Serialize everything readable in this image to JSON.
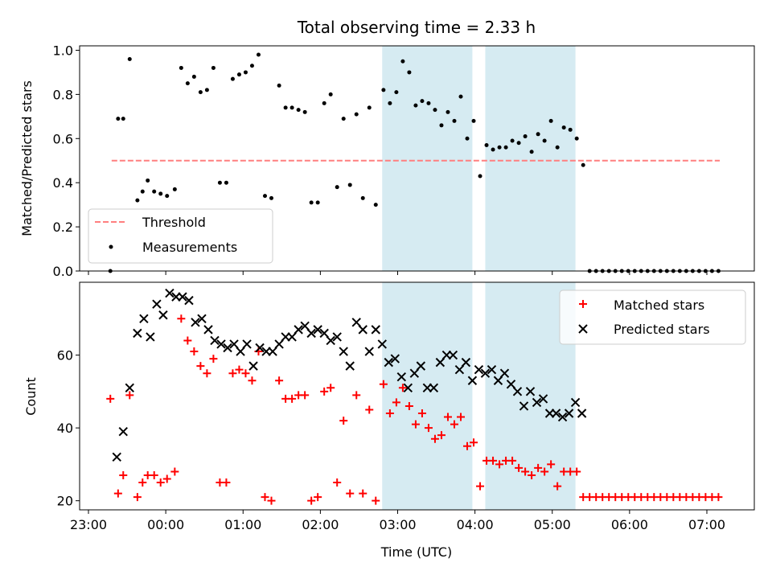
{
  "chart_data": {
    "title": "Total observing time = 2.33 h",
    "colors": {
      "threshold": "#ff7f7f",
      "measurements": "#000000",
      "matched": "#ff0000",
      "predicted": "#000000",
      "shade": "#add8e6"
    },
    "xlabel": "Time (UTC)",
    "x_ticks": [
      "23:00",
      "00:00",
      "01:00",
      "02:00",
      "03:00",
      "04:00",
      "05:00",
      "06:00",
      "07:00"
    ],
    "shaded_intervals": [
      [
        "02:48",
        "03:58"
      ],
      [
        "04:08",
        "05:18"
      ]
    ],
    "top": {
      "type": "scatter",
      "ylabel": "Matched/Predicted stars",
      "ylim": [
        0,
        1.02
      ],
      "y_ticks": [
        "0.0",
        "0.2",
        "0.4",
        "0.6",
        "0.8",
        "1.0"
      ],
      "legend": {
        "placement": "lower-left",
        "entries": [
          "Threshold",
          "Measurements"
        ]
      },
      "threshold": {
        "name": "Threshold",
        "value": 0.5,
        "x_range": [
          "23:18",
          "07:10"
        ]
      },
      "measurements": {
        "name": "Measurements",
        "points": [
          [
            "23:17",
            0.0
          ],
          [
            "23:23",
            0.69
          ],
          [
            "23:27",
            0.69
          ],
          [
            "23:32",
            0.96
          ],
          [
            "23:38",
            0.32
          ],
          [
            "23:42",
            0.36
          ],
          [
            "23:46",
            0.41
          ],
          [
            "23:51",
            0.36
          ],
          [
            "23:56",
            0.35
          ],
          [
            "00:01",
            0.34
          ],
          [
            "00:07",
            0.37
          ],
          [
            "00:12",
            0.92
          ],
          [
            "00:17",
            0.85
          ],
          [
            "00:22",
            0.88
          ],
          [
            "00:27",
            0.81
          ],
          [
            "00:32",
            0.82
          ],
          [
            "00:37",
            0.92
          ],
          [
            "00:42",
            0.4
          ],
          [
            "00:47",
            0.4
          ],
          [
            "00:52",
            0.87
          ],
          [
            "00:57",
            0.89
          ],
          [
            "01:02",
            0.9
          ],
          [
            "01:07",
            0.93
          ],
          [
            "01:12",
            0.98
          ],
          [
            "01:17",
            0.34
          ],
          [
            "01:22",
            0.33
          ],
          [
            "01:28",
            0.84
          ],
          [
            "01:33",
            0.74
          ],
          [
            "01:38",
            0.74
          ],
          [
            "01:43",
            0.73
          ],
          [
            "01:48",
            0.72
          ],
          [
            "01:53",
            0.31
          ],
          [
            "01:58",
            0.31
          ],
          [
            "02:03",
            0.76
          ],
          [
            "02:08",
            0.8
          ],
          [
            "02:13",
            0.38
          ],
          [
            "02:18",
            0.69
          ],
          [
            "02:23",
            0.39
          ],
          [
            "02:28",
            0.71
          ],
          [
            "02:33",
            0.33
          ],
          [
            "02:38",
            0.74
          ],
          [
            "02:43",
            0.3
          ],
          [
            "02:49",
            0.82
          ],
          [
            "02:54",
            0.76
          ],
          [
            "02:59",
            0.81
          ],
          [
            "03:04",
            0.95
          ],
          [
            "03:09",
            0.9
          ],
          [
            "03:14",
            0.75
          ],
          [
            "03:19",
            0.77
          ],
          [
            "03:24",
            0.76
          ],
          [
            "03:29",
            0.73
          ],
          [
            "03:34",
            0.66
          ],
          [
            "03:39",
            0.72
          ],
          [
            "03:44",
            0.68
          ],
          [
            "03:49",
            0.79
          ],
          [
            "03:54",
            0.6
          ],
          [
            "03:59",
            0.68
          ],
          [
            "04:04",
            0.43
          ],
          [
            "04:09",
            0.57
          ],
          [
            "04:14",
            0.55
          ],
          [
            "04:19",
            0.56
          ],
          [
            "04:24",
            0.56
          ],
          [
            "04:29",
            0.59
          ],
          [
            "04:34",
            0.58
          ],
          [
            "04:39",
            0.61
          ],
          [
            "04:44",
            0.54
          ],
          [
            "04:49",
            0.62
          ],
          [
            "04:54",
            0.59
          ],
          [
            "04:59",
            0.68
          ],
          [
            "05:04",
            0.56
          ],
          [
            "05:09",
            0.65
          ],
          [
            "05:14",
            0.64
          ],
          [
            "05:19",
            0.6
          ],
          [
            "05:24",
            0.48
          ],
          [
            "05:29",
            0.0
          ],
          [
            "05:34",
            0.0
          ],
          [
            "05:39",
            0.0
          ],
          [
            "05:44",
            0.0
          ],
          [
            "05:49",
            0.0
          ],
          [
            "05:54",
            0.0
          ],
          [
            "05:59",
            0.0
          ],
          [
            "06:04",
            0.0
          ],
          [
            "06:09",
            0.0
          ],
          [
            "06:14",
            0.0
          ],
          [
            "06:19",
            0.0
          ],
          [
            "06:24",
            0.0
          ],
          [
            "06:29",
            0.0
          ],
          [
            "06:34",
            0.0
          ],
          [
            "06:39",
            0.0
          ],
          [
            "06:44",
            0.0
          ],
          [
            "06:49",
            0.0
          ],
          [
            "06:54",
            0.0
          ],
          [
            "06:59",
            0.0
          ],
          [
            "07:04",
            0.0
          ],
          [
            "07:09",
            0.0
          ]
        ]
      }
    },
    "bottom": {
      "type": "scatter",
      "ylabel": "Count",
      "ylim": [
        17.5,
        80
      ],
      "y_ticks": [
        "20",
        "40",
        "60"
      ],
      "legend": {
        "placement": "upper-right",
        "entries": [
          "Matched stars",
          "Predicted stars"
        ]
      },
      "matched": {
        "name": "Matched stars",
        "points": [
          [
            "23:17",
            48
          ],
          [
            "23:23",
            22
          ],
          [
            "23:27",
            27
          ],
          [
            "23:32",
            49
          ],
          [
            "23:38",
            21
          ],
          [
            "23:42",
            25
          ],
          [
            "23:46",
            27
          ],
          [
            "23:51",
            27
          ],
          [
            "23:56",
            25
          ],
          [
            "00:01",
            26
          ],
          [
            "00:07",
            28
          ],
          [
            "00:12",
            70
          ],
          [
            "00:17",
            64
          ],
          [
            "00:22",
            61
          ],
          [
            "00:27",
            57
          ],
          [
            "00:32",
            55
          ],
          [
            "00:37",
            59
          ],
          [
            "00:42",
            25
          ],
          [
            "00:47",
            25
          ],
          [
            "00:52",
            55
          ],
          [
            "00:57",
            56
          ],
          [
            "01:02",
            55
          ],
          [
            "01:07",
            53
          ],
          [
            "01:12",
            61
          ],
          [
            "01:17",
            21
          ],
          [
            "01:22",
            20
          ],
          [
            "01:28",
            53
          ],
          [
            "01:33",
            48
          ],
          [
            "01:38",
            48
          ],
          [
            "01:43",
            49
          ],
          [
            "01:48",
            49
          ],
          [
            "01:53",
            20
          ],
          [
            "01:58",
            21
          ],
          [
            "02:03",
            50
          ],
          [
            "02:08",
            51
          ],
          [
            "02:13",
            25
          ],
          [
            "02:18",
            42
          ],
          [
            "02:23",
            22
          ],
          [
            "02:28",
            49
          ],
          [
            "02:33",
            22
          ],
          [
            "02:38",
            45
          ],
          [
            "02:43",
            20
          ],
          [
            "02:49",
            52
          ],
          [
            "02:54",
            44
          ],
          [
            "02:59",
            47
          ],
          [
            "03:04",
            51
          ],
          [
            "03:09",
            46
          ],
          [
            "03:14",
            41
          ],
          [
            "03:19",
            44
          ],
          [
            "03:24",
            40
          ],
          [
            "03:29",
            37
          ],
          [
            "03:34",
            38
          ],
          [
            "03:39",
            43
          ],
          [
            "03:44",
            41
          ],
          [
            "03:49",
            43
          ],
          [
            "03:54",
            35
          ],
          [
            "03:59",
            36
          ],
          [
            "04:04",
            24
          ],
          [
            "04:09",
            31
          ],
          [
            "04:14",
            31
          ],
          [
            "04:19",
            30
          ],
          [
            "04:24",
            31
          ],
          [
            "04:29",
            31
          ],
          [
            "04:34",
            29
          ],
          [
            "04:39",
            28
          ],
          [
            "04:44",
            27
          ],
          [
            "04:49",
            29
          ],
          [
            "04:54",
            28
          ],
          [
            "04:59",
            30
          ],
          [
            "05:04",
            24
          ],
          [
            "05:09",
            28
          ],
          [
            "05:14",
            28
          ],
          [
            "05:19",
            28
          ],
          [
            "05:24",
            21
          ],
          [
            "05:29",
            21
          ],
          [
            "05:34",
            21
          ],
          [
            "05:39",
            21
          ],
          [
            "05:44",
            21
          ],
          [
            "05:49",
            21
          ],
          [
            "05:54",
            21
          ],
          [
            "05:59",
            21
          ],
          [
            "06:04",
            21
          ],
          [
            "06:09",
            21
          ],
          [
            "06:14",
            21
          ],
          [
            "06:19",
            21
          ],
          [
            "06:24",
            21
          ],
          [
            "06:29",
            21
          ],
          [
            "06:34",
            21
          ],
          [
            "06:39",
            21
          ],
          [
            "06:44",
            21
          ],
          [
            "06:49",
            21
          ],
          [
            "06:54",
            21
          ],
          [
            "06:59",
            21
          ],
          [
            "07:04",
            21
          ],
          [
            "07:09",
            21
          ]
        ]
      },
      "predicted": {
        "name": "Predicted stars",
        "points": [
          [
            "23:22",
            32
          ],
          [
            "23:27",
            39
          ],
          [
            "23:32",
            51
          ],
          [
            "23:38",
            66
          ],
          [
            "23:43",
            70
          ],
          [
            "23:48",
            65
          ],
          [
            "23:53",
            74
          ],
          [
            "23:58",
            71
          ],
          [
            "00:03",
            77
          ],
          [
            "00:08",
            76
          ],
          [
            "00:13",
            76
          ],
          [
            "00:18",
            75
          ],
          [
            "00:23",
            69
          ],
          [
            "00:28",
            70
          ],
          [
            "00:33",
            67
          ],
          [
            "00:38",
            64
          ],
          [
            "00:43",
            63
          ],
          [
            "00:48",
            62
          ],
          [
            "00:53",
            63
          ],
          [
            "00:58",
            61
          ],
          [
            "01:03",
            63
          ],
          [
            "01:08",
            57
          ],
          [
            "01:13",
            62
          ],
          [
            "01:18",
            61
          ],
          [
            "01:23",
            61
          ],
          [
            "01:28",
            63
          ],
          [
            "01:33",
            65
          ],
          [
            "01:38",
            65
          ],
          [
            "01:43",
            67
          ],
          [
            "01:48",
            68
          ],
          [
            "01:53",
            66
          ],
          [
            "01:58",
            67
          ],
          [
            "02:03",
            66
          ],
          [
            "02:08",
            64
          ],
          [
            "02:13",
            65
          ],
          [
            "02:18",
            61
          ],
          [
            "02:23",
            57
          ],
          [
            "02:28",
            69
          ],
          [
            "02:33",
            67
          ],
          [
            "02:38",
            61
          ],
          [
            "02:43",
            67
          ],
          [
            "02:48",
            63
          ],
          [
            "02:53",
            58
          ],
          [
            "02:58",
            59
          ],
          [
            "03:03",
            54
          ],
          [
            "03:08",
            51
          ],
          [
            "03:13",
            55
          ],
          [
            "03:18",
            57
          ],
          [
            "03:23",
            51
          ],
          [
            "03:28",
            51
          ],
          [
            "03:33",
            58
          ],
          [
            "03:38",
            60
          ],
          [
            "03:43",
            60
          ],
          [
            "03:48",
            56
          ],
          [
            "03:53",
            58
          ],
          [
            "03:58",
            53
          ],
          [
            "04:03",
            56
          ],
          [
            "04:08",
            55
          ],
          [
            "04:13",
            56
          ],
          [
            "04:18",
            53
          ],
          [
            "04:23",
            55
          ],
          [
            "04:28",
            52
          ],
          [
            "04:33",
            50
          ],
          [
            "04:38",
            46
          ],
          [
            "04:43",
            50
          ],
          [
            "04:48",
            47
          ],
          [
            "04:53",
            48
          ],
          [
            "04:58",
            44
          ],
          [
            "05:03",
            44
          ],
          [
            "05:08",
            43
          ],
          [
            "05:13",
            44
          ],
          [
            "05:18",
            47
          ],
          [
            "05:23",
            44
          ]
        ]
      }
    }
  }
}
